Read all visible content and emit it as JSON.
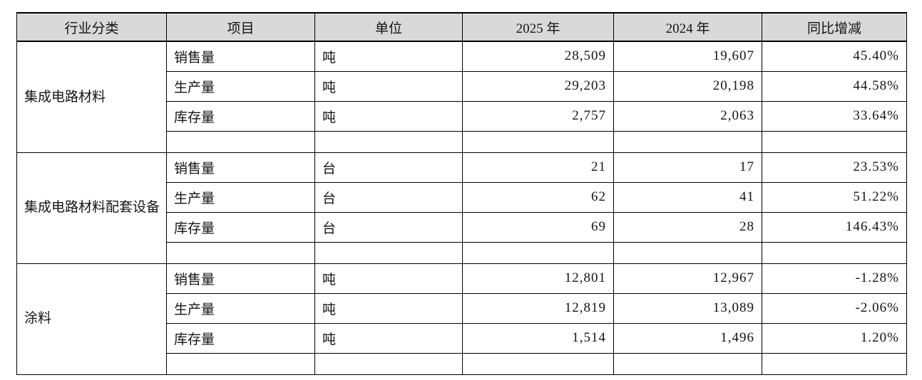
{
  "table": {
    "headers": [
      "行业分类",
      "项目",
      "单位",
      "2025 年",
      "2024 年",
      "同比增减"
    ],
    "sections": [
      {
        "category": "集成电路材料",
        "rows": [
          {
            "item": "销售量",
            "unit": "吨",
            "y2025": "28,509",
            "y2024": "19,607",
            "change": "45.40%"
          },
          {
            "item": "生产量",
            "unit": "吨",
            "y2025": "29,203",
            "y2024": "20,198",
            "change": "44.58%"
          },
          {
            "item": "库存量",
            "unit": "吨",
            "y2025": "2,757",
            "y2024": "2,063",
            "change": "33.64%"
          },
          {
            "item": "",
            "unit": "",
            "y2025": "",
            "y2024": "",
            "change": ""
          }
        ]
      },
      {
        "category": "集成电路材料配套设备",
        "rows": [
          {
            "item": "销售量",
            "unit": "台",
            "y2025": "21",
            "y2024": "17",
            "change": "23.53%"
          },
          {
            "item": "生产量",
            "unit": "台",
            "y2025": "62",
            "y2024": "41",
            "change": "51.22%"
          },
          {
            "item": "库存量",
            "unit": "台",
            "y2025": "69",
            "y2024": "28",
            "change": "146.43%"
          },
          {
            "item": "",
            "unit": "",
            "y2025": "",
            "y2024": "",
            "change": ""
          }
        ]
      },
      {
        "category": "涂料",
        "rows": [
          {
            "item": "销售量",
            "unit": "吨",
            "y2025": "12,801",
            "y2024": "12,967",
            "change": "-1.28%"
          },
          {
            "item": "生产量",
            "unit": "吨",
            "y2025": "12,819",
            "y2024": "13,089",
            "change": "-2.06%"
          },
          {
            "item": "库存量",
            "unit": "吨",
            "y2025": "1,514",
            "y2024": "1,496",
            "change": "1.20%"
          },
          {
            "item": "",
            "unit": "",
            "y2025": "",
            "y2024": "",
            "change": ""
          }
        ]
      }
    ]
  }
}
